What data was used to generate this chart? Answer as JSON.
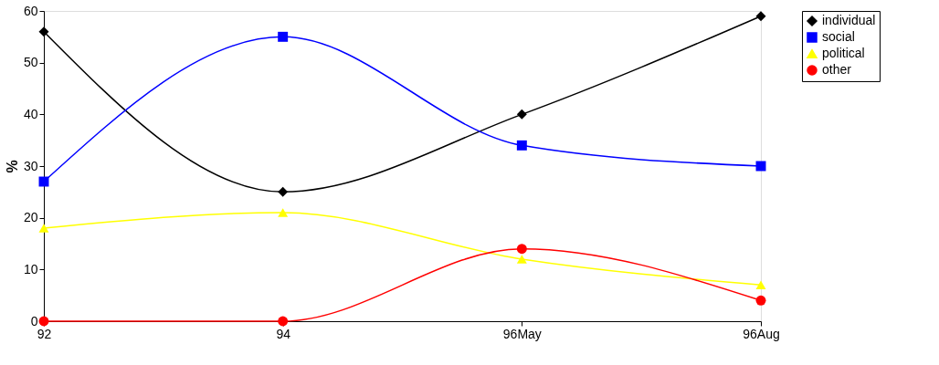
{
  "chart_data": {
    "type": "line",
    "ylabel": "%",
    "categories": [
      "92",
      "94",
      "96May",
      "96Aug"
    ],
    "ylim": [
      0,
      60
    ],
    "yticks": [
      0,
      10,
      20,
      30,
      40,
      50,
      60
    ],
    "grid": false,
    "legend": "top right",
    "line_style": "solid",
    "series": [
      {
        "name": "individual",
        "color": "#000000",
        "marker": "diamond",
        "values": [
          56,
          25,
          40,
          59
        ]
      },
      {
        "name": "social",
        "color": "#0000ff",
        "marker": "square",
        "values": [
          27,
          55,
          34,
          30
        ]
      },
      {
        "name": "political",
        "color": "#ffff00",
        "marker": "triangle",
        "values": [
          18,
          21,
          12,
          7
        ]
      },
      {
        "name": "other",
        "color": "#ff0000",
        "marker": "circle",
        "values": [
          0,
          0,
          14,
          4
        ]
      }
    ]
  }
}
